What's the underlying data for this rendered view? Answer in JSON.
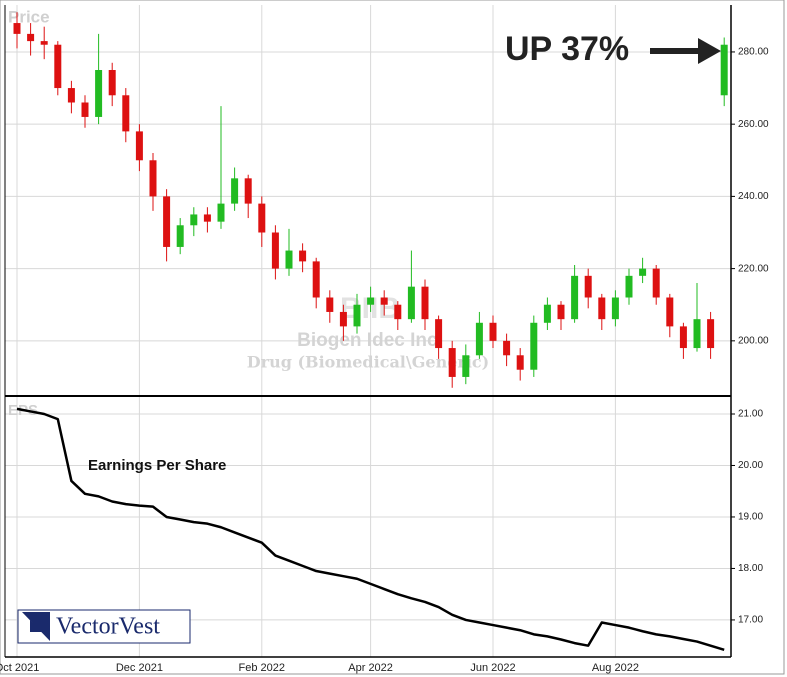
{
  "chart_data": [
    {
      "type": "candlestick",
      "title": "Price",
      "symbol": "BIIB",
      "company": "Biogen Idec Inc.",
      "industry": "Drug (Biomedical\\Generic)",
      "callout": "UP 37%",
      "up_color": "#22bb22",
      "down_color": "#dd1111",
      "ylim": [
        185,
        293
      ],
      "yticks": [
        {
          "value": 200,
          "label": "200.00"
        },
        {
          "value": 220,
          "label": "220.00"
        },
        {
          "value": 240,
          "label": "240.00"
        },
        {
          "value": 260,
          "label": "260.00"
        },
        {
          "value": 280,
          "label": "280.00"
        }
      ],
      "grid": true,
      "open": [
        288,
        285,
        283,
        282,
        270,
        266,
        262,
        275,
        268,
        258,
        250,
        240,
        226,
        232,
        235,
        233,
        238,
        245,
        238,
        230,
        220,
        225,
        222,
        212,
        208,
        204,
        210,
        212,
        210,
        206,
        215,
        206,
        198,
        190,
        196,
        205,
        200,
        196,
        192,
        205,
        210,
        206,
        218,
        212,
        206,
        212,
        218,
        220,
        212,
        204,
        198,
        206,
        268
      ],
      "high": [
        291,
        288,
        287,
        283,
        272,
        268,
        285,
        277,
        270,
        260,
        252,
        242,
        234,
        237,
        237,
        265,
        248,
        246,
        240,
        232,
        231,
        227,
        223,
        214,
        210,
        213,
        215,
        214,
        211,
        225,
        217,
        207,
        200,
        199,
        208,
        207,
        202,
        198,
        207,
        212,
        211,
        221,
        220,
        213,
        214,
        220,
        223,
        221,
        213,
        205,
        216,
        208,
        284
      ],
      "low": [
        281,
        279,
        278,
        268,
        263,
        259,
        260,
        265,
        255,
        247,
        236,
        222,
        224,
        229,
        230,
        231,
        236,
        234,
        226,
        217,
        218,
        219,
        209,
        205,
        200,
        202,
        208,
        207,
        203,
        205,
        203,
        195,
        187,
        188,
        195,
        198,
        193,
        189,
        190,
        203,
        203,
        205,
        209,
        203,
        204,
        210,
        216,
        210,
        201,
        195,
        197,
        195,
        265
      ],
      "close": [
        285,
        283,
        282,
        270,
        266,
        262,
        275,
        268,
        258,
        250,
        240,
        226,
        232,
        235,
        233,
        238,
        245,
        238,
        230,
        220,
        225,
        222,
        212,
        208,
        204,
        210,
        212,
        210,
        206,
        215,
        206,
        198,
        190,
        196,
        205,
        200,
        196,
        192,
        205,
        210,
        206,
        218,
        212,
        206,
        212,
        218,
        220,
        212,
        204,
        198,
        206,
        198,
        282
      ]
    },
    {
      "type": "line",
      "title": "EPS",
      "label": "Earnings Per Share",
      "color": "#000000",
      "categories": [
        "Oct 2021",
        null,
        null,
        null,
        null,
        null,
        null,
        null,
        null,
        "Dec 2021",
        null,
        null,
        null,
        null,
        null,
        null,
        null,
        null,
        "Feb 2022",
        null,
        null,
        null,
        null,
        null,
        null,
        null,
        "Apr 2022",
        null,
        null,
        null,
        null,
        null,
        null,
        null,
        null,
        "Jun 2022",
        null,
        null,
        null,
        null,
        null,
        null,
        null,
        null,
        "Aug 2022",
        null,
        null,
        null,
        null,
        null,
        null,
        null,
        null
      ],
      "ylim": [
        16.28,
        21.33
      ],
      "yticks": [
        {
          "value": 17,
          "label": "17.00"
        },
        {
          "value": 18,
          "label": "18.00"
        },
        {
          "value": 19,
          "label": "19.00"
        },
        {
          "value": 20,
          "label": "20.00"
        },
        {
          "value": 21,
          "label": "21.00"
        }
      ],
      "grid": true,
      "values": [
        21.1,
        21.05,
        21.0,
        20.9,
        19.7,
        19.45,
        19.4,
        19.3,
        19.25,
        19.22,
        19.2,
        19.0,
        18.95,
        18.9,
        18.87,
        18.8,
        18.7,
        18.6,
        18.5,
        18.25,
        18.15,
        18.05,
        17.95,
        17.9,
        17.85,
        17.8,
        17.7,
        17.6,
        17.5,
        17.42,
        17.35,
        17.25,
        17.1,
        17.0,
        16.95,
        16.9,
        16.85,
        16.8,
        16.72,
        16.68,
        16.62,
        16.55,
        16.5,
        16.95,
        16.9,
        16.85,
        16.78,
        16.72,
        16.68,
        16.63,
        16.58,
        16.5,
        16.42
      ]
    },
    {
      "logo": "VectorVest"
    }
  ]
}
